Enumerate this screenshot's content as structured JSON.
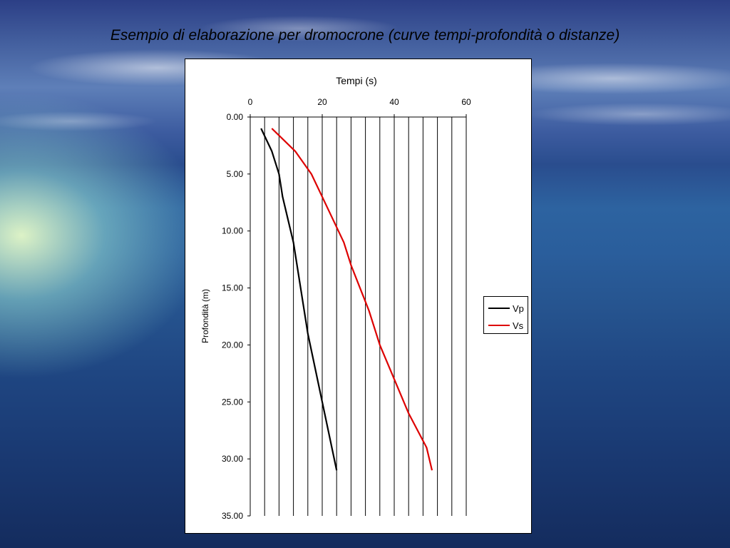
{
  "slide": {
    "title": "Esempio di elaborazione per dromocrone (curve tempi-profondità o distanze)"
  },
  "chart_data": {
    "type": "line",
    "title": "Tempi (s)",
    "xlabel": "Tempi (s)",
    "ylabel": "Profondità (m)",
    "x_axis_position": "top",
    "y_axis_inverted": true,
    "xlim": [
      0,
      60
    ],
    "ylim": [
      0,
      35
    ],
    "x_ticks": [
      "0",
      "20",
      "40",
      "60"
    ],
    "y_ticks": [
      "0.00",
      "5.00",
      "10.00",
      "15.00",
      "20.00",
      "25.00",
      "30.00",
      "35.00"
    ],
    "vertical_gridlines_every": 4,
    "horizontal_gridlines": false,
    "legend_position": "right",
    "series": [
      {
        "name": "Vp",
        "color": "#000000",
        "points": [
          [
            3,
            1
          ],
          [
            6,
            3
          ],
          [
            8,
            5
          ],
          [
            9,
            7
          ],
          [
            12,
            11
          ],
          [
            14,
            15
          ],
          [
            16,
            19
          ],
          [
            20,
            25
          ],
          [
            24,
            31
          ]
        ]
      },
      {
        "name": "Vs",
        "color": "#dd0000",
        "points": [
          [
            6,
            1
          ],
          [
            12.5,
            3
          ],
          [
            17,
            5
          ],
          [
            20,
            7
          ],
          [
            26,
            11
          ],
          [
            28,
            13
          ],
          [
            33,
            17
          ],
          [
            36,
            20
          ],
          [
            44,
            26
          ],
          [
            49,
            29
          ],
          [
            50.5,
            31
          ]
        ]
      }
    ]
  }
}
